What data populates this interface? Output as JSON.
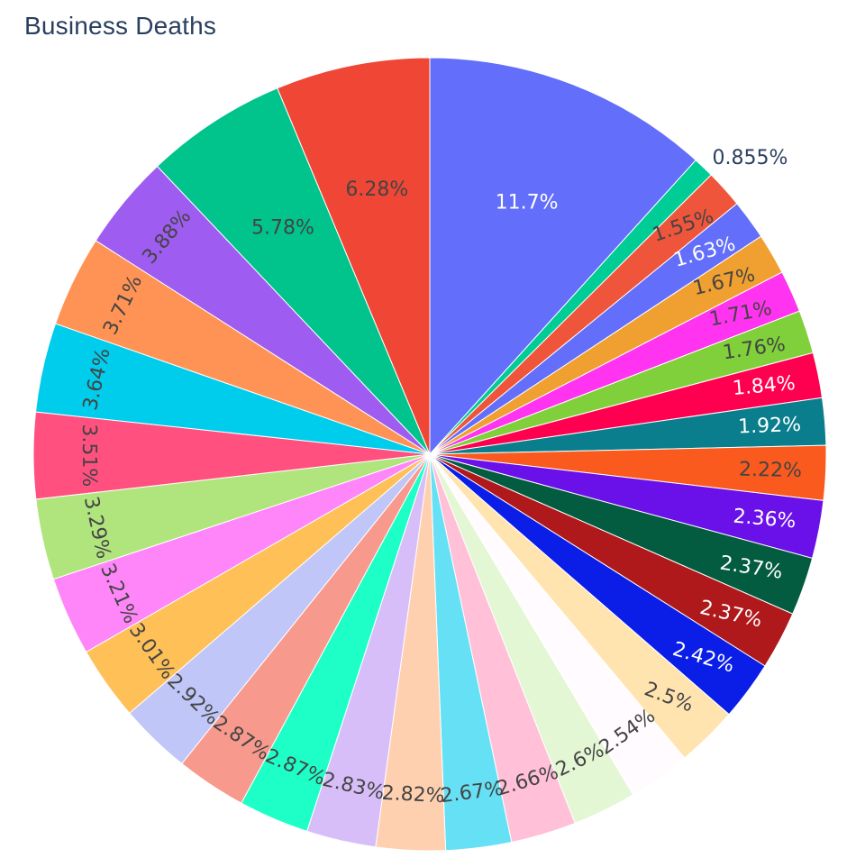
{
  "chart_data": {
    "type": "pie",
    "title": "Business Deaths",
    "direction": "clockwise",
    "start": "12 o'clock",
    "text_info": "percent",
    "slices": [
      {
        "label": "11.7%",
        "value": 11.7,
        "color": "#636EFA",
        "text_color": "#ffffff"
      },
      {
        "label": "0.855%",
        "value": 0.855,
        "color": "#00CC96",
        "text_color": "#2a3f5f",
        "outside": true
      },
      {
        "label": "1.55%",
        "value": 1.55,
        "color": "#EF553B",
        "text_color": "#444444"
      },
      {
        "label": "1.63%",
        "value": 1.63,
        "color": "#636EFA",
        "text_color": "#ffffff"
      },
      {
        "label": "1.67%",
        "value": 1.67,
        "color": "#F0A030",
        "text_color": "#444444"
      },
      {
        "label": "1.71%",
        "value": 1.71,
        "color": "#FF33F0",
        "text_color": "#444444"
      },
      {
        "label": "1.76%",
        "value": 1.76,
        "color": "#7FD03A",
        "text_color": "#444444"
      },
      {
        "label": "1.84%",
        "value": 1.84,
        "color": "#FF0050",
        "text_color": "#ffffff"
      },
      {
        "label": "1.92%",
        "value": 1.92,
        "color": "#0A7E8C",
        "text_color": "#ffffff"
      },
      {
        "label": "2.22%",
        "value": 2.22,
        "color": "#FA5A1E",
        "text_color": "#444444"
      },
      {
        "label": "2.36%",
        "value": 2.36,
        "color": "#6A10E8",
        "text_color": "#ffffff"
      },
      {
        "label": "2.37%",
        "value": 2.37,
        "color": "#035C40",
        "text_color": "#ffffff"
      },
      {
        "label": "2.37%",
        "value": 2.37,
        "color": "#B0191C",
        "text_color": "#ffffff"
      },
      {
        "label": "2.42%",
        "value": 2.42,
        "color": "#0A1EE8",
        "text_color": "#ffffff"
      },
      {
        "label": "2.5%",
        "value": 2.5,
        "color": "#FFE4B0",
        "text_color": "#444444"
      },
      {
        "label": "2.54%",
        "value": 2.54,
        "color": "#FFFBFF",
        "text_color": "#444444"
      },
      {
        "label": "2.6%",
        "value": 2.6,
        "color": "#E4F7D4",
        "text_color": "#444444"
      },
      {
        "label": "2.66%",
        "value": 2.66,
        "color": "#FFC0D8",
        "text_color": "#444444"
      },
      {
        "label": "2.67%",
        "value": 2.67,
        "color": "#66E0F5",
        "text_color": "#444444"
      },
      {
        "label": "2.82%",
        "value": 2.82,
        "color": "#FFD0B0",
        "text_color": "#444444"
      },
      {
        "label": "2.83%",
        "value": 2.83,
        "color": "#D8BEF8",
        "text_color": "#444444"
      },
      {
        "label": "2.87%",
        "value": 2.87,
        "color": "#1EFFC8",
        "text_color": "#444444"
      },
      {
        "label": "2.87%",
        "value": 2.87,
        "color": "#F7998C",
        "text_color": "#444444"
      },
      {
        "label": "2.92%",
        "value": 2.92,
        "color": "#C0C6F8",
        "text_color": "#444444"
      },
      {
        "label": "3.01%",
        "value": 3.01,
        "color": "#FFC057",
        "text_color": "#444444"
      },
      {
        "label": "3.21%",
        "value": 3.21,
        "color": "#FF86F8",
        "text_color": "#444444"
      },
      {
        "label": "3.29%",
        "value": 3.29,
        "color": "#B0E57E",
        "text_color": "#444444"
      },
      {
        "label": "3.51%",
        "value": 3.51,
        "color": "#FF5080",
        "text_color": "#444444"
      },
      {
        "label": "3.64%",
        "value": 3.64,
        "color": "#00CCEC",
        "text_color": "#444444"
      },
      {
        "label": "3.71%",
        "value": 3.71,
        "color": "#FF9355",
        "text_color": "#444444"
      },
      {
        "label": "3.88%",
        "value": 3.88,
        "color": "#9E5CF0",
        "text_color": "#444444"
      },
      {
        "label": "5.78%",
        "value": 5.78,
        "color": "#00C48C",
        "text_color": "#444444"
      },
      {
        "label": "6.28%",
        "value": 6.28,
        "color": "#EF4635",
        "text_color": "#444444"
      }
    ]
  }
}
